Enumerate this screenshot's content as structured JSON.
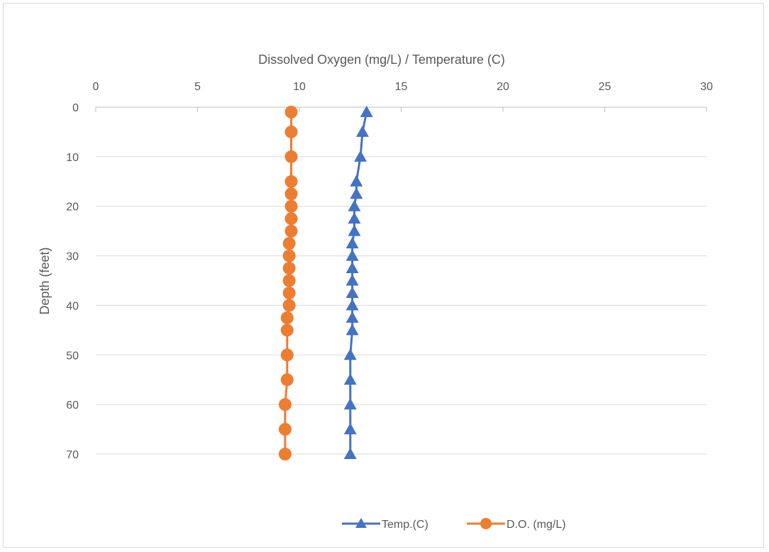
{
  "chart_data": {
    "type": "line",
    "x_axis_title": "Dissolved Oxygen (mg/L) / Temperature (C)",
    "y_axis_title": "Depth (feet)",
    "x_axis_position": "top",
    "y_axis_reversed": true,
    "xlim": [
      0,
      30
    ],
    "ylim": [
      0,
      70
    ],
    "x_ticks": [
      0,
      5,
      10,
      15,
      20,
      25,
      30
    ],
    "y_ticks": [
      0,
      10,
      20,
      30,
      40,
      50,
      60,
      70
    ],
    "grid": "horizontal",
    "legend_position": "bottom",
    "series": [
      {
        "name": "Temp.(C)",
        "color": "#4472c4",
        "marker": "triangle",
        "points": [
          {
            "depth": 1,
            "value": 13.3
          },
          {
            "depth": 5,
            "value": 13.1
          },
          {
            "depth": 10,
            "value": 13.0
          },
          {
            "depth": 15,
            "value": 12.8
          },
          {
            "depth": 17.5,
            "value": 12.8
          },
          {
            "depth": 20,
            "value": 12.7
          },
          {
            "depth": 22.5,
            "value": 12.7
          },
          {
            "depth": 25,
            "value": 12.7
          },
          {
            "depth": 27.5,
            "value": 12.6
          },
          {
            "depth": 30,
            "value": 12.6
          },
          {
            "depth": 32.5,
            "value": 12.6
          },
          {
            "depth": 35,
            "value": 12.6
          },
          {
            "depth": 37.5,
            "value": 12.6
          },
          {
            "depth": 40,
            "value": 12.6
          },
          {
            "depth": 42.5,
            "value": 12.6
          },
          {
            "depth": 45,
            "value": 12.6
          },
          {
            "depth": 50,
            "value": 12.5
          },
          {
            "depth": 55,
            "value": 12.5
          },
          {
            "depth": 60,
            "value": 12.5
          },
          {
            "depth": 65,
            "value": 12.5
          },
          {
            "depth": 70,
            "value": 12.5
          }
        ]
      },
      {
        "name": "D.O. (mg/L)",
        "color": "#ed7d31",
        "marker": "circle",
        "points": [
          {
            "depth": 1,
            "value": 9.6
          },
          {
            "depth": 5,
            "value": 9.6
          },
          {
            "depth": 10,
            "value": 9.6
          },
          {
            "depth": 15,
            "value": 9.6
          },
          {
            "depth": 17.5,
            "value": 9.6
          },
          {
            "depth": 20,
            "value": 9.6
          },
          {
            "depth": 22.5,
            "value": 9.6
          },
          {
            "depth": 25,
            "value": 9.6
          },
          {
            "depth": 27.5,
            "value": 9.5
          },
          {
            "depth": 30,
            "value": 9.5
          },
          {
            "depth": 32.5,
            "value": 9.5
          },
          {
            "depth": 35,
            "value": 9.5
          },
          {
            "depth": 37.5,
            "value": 9.5
          },
          {
            "depth": 40,
            "value": 9.5
          },
          {
            "depth": 42.5,
            "value": 9.4
          },
          {
            "depth": 45,
            "value": 9.4
          },
          {
            "depth": 50,
            "value": 9.4
          },
          {
            "depth": 55,
            "value": 9.4
          },
          {
            "depth": 60,
            "value": 9.3
          },
          {
            "depth": 65,
            "value": 9.3
          },
          {
            "depth": 70,
            "value": 9.3
          }
        ]
      }
    ]
  }
}
